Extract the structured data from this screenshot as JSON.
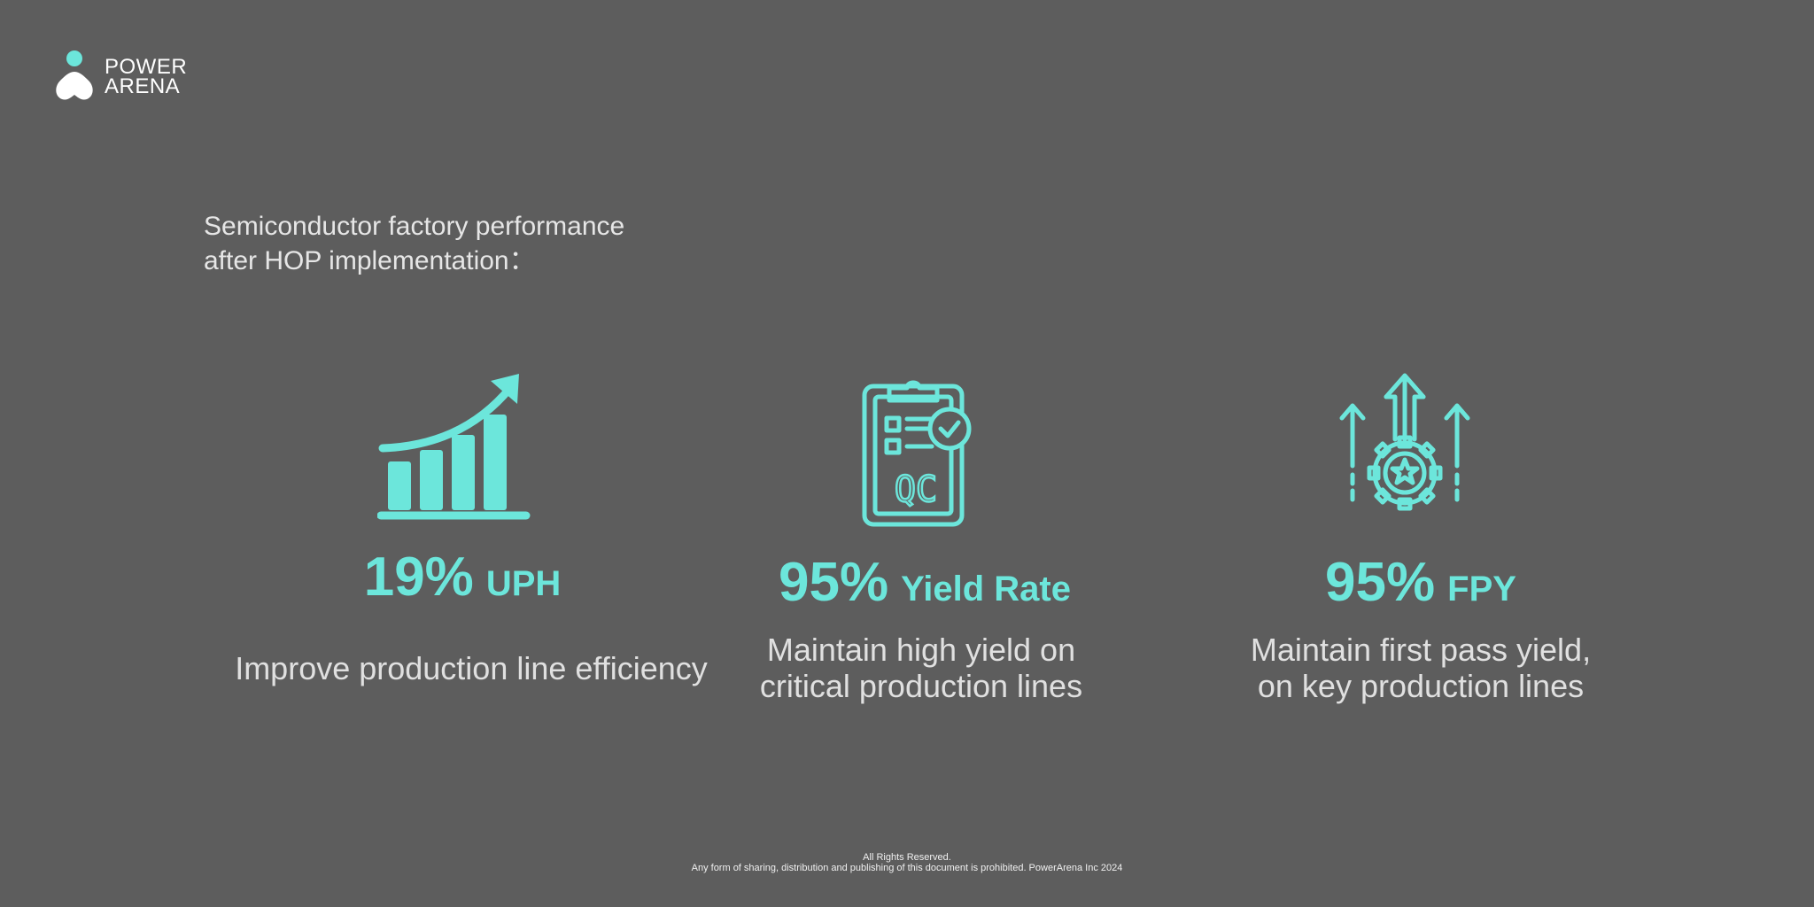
{
  "logo": {
    "line1": "POWER",
    "line2": "ARENA"
  },
  "intro": {
    "line1": "Semiconductor factory performance",
    "line2": "after HOP implementation："
  },
  "metrics": [
    {
      "icon": "growth-chart-icon",
      "value": "19%",
      "label": "UPH",
      "desc_lines": [
        "Improve production line efficiency"
      ]
    },
    {
      "icon": "qc-clipboard-icon",
      "value": "95%",
      "label": "Yield Rate",
      "desc_lines": [
        "Maintain high yield on",
        "critical production lines"
      ]
    },
    {
      "icon": "gear-arrows-icon",
      "value": "95%",
      "label": "FPY",
      "desc_lines": [
        "Maintain first pass yield,",
        "on key production lines"
      ]
    }
  ],
  "icon_text": {
    "qc": "QC"
  },
  "footer": {
    "line1": "All Rights Reserved.",
    "line2": "Any form of sharing, distribution and publishing of this document is prohibited. PowerArena Inc 2024"
  },
  "colors": {
    "background": "#5d5d5d",
    "accent": "#6ce6db",
    "text": "#e0e0e0",
    "logo_text": "#ffffff"
  }
}
